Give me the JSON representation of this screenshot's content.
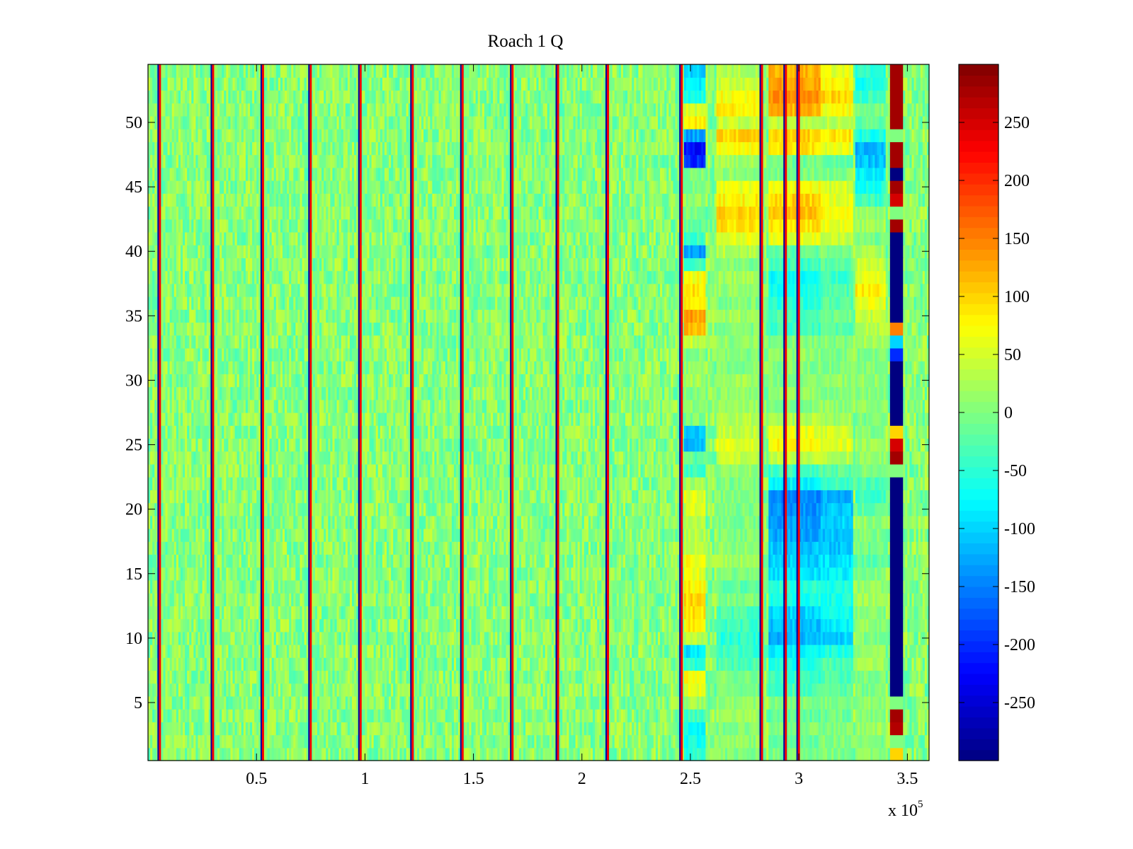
{
  "chart_data": {
    "type": "heatmap",
    "title": "Roach 1 Q",
    "xlabel": "",
    "ylabel": "",
    "x_multiplier": "x 10",
    "x_multiplier_exponent": "5",
    "xlim": [
      0,
      3.6
    ],
    "ylim": [
      0.5,
      54.5
    ],
    "x_ticks": [
      0.5,
      1,
      1.5,
      2,
      2.5,
      3,
      3.5
    ],
    "x_tick_labels": [
      "0.5",
      "1",
      "1.5",
      "2",
      "2.5",
      "3",
      "3.5"
    ],
    "y_ticks": [
      5,
      10,
      15,
      20,
      25,
      30,
      35,
      40,
      45,
      50
    ],
    "y_tick_labels": [
      "5",
      "10",
      "15",
      "20",
      "25",
      "30",
      "35",
      "40",
      "45",
      "50"
    ],
    "rows": 54,
    "colorbar": {
      "colormap": "jet",
      "clim": [
        -300,
        300
      ],
      "ticks": [
        250,
        200,
        150,
        100,
        50,
        0,
        -50,
        -100,
        -150,
        -200,
        -250
      ],
      "tick_labels": [
        "250",
        "200",
        "150",
        "100",
        "50",
        "0",
        "-50",
        "-100",
        "-150",
        "-200",
        "-250"
      ]
    },
    "base_level": 5,
    "vertical_stripes_x": [
      0.055,
      0.3,
      0.53,
      0.75,
      0.98,
      1.22,
      1.45,
      1.68,
      1.89,
      2.12,
      2.46,
      2.83,
      2.94,
      3.0
    ],
    "right_band": {
      "x_range": [
        3.42,
        3.48
      ],
      "row_values": [
        100,
        0,
        270,
        280,
        0,
        -300,
        -300,
        -300,
        -300,
        -300,
        -300,
        -300,
        -300,
        -300,
        -300,
        -300,
        -300,
        -300,
        -300,
        -300,
        -300,
        -300,
        0,
        280,
        250,
        100,
        -300,
        -300,
        -300,
        -300,
        -300,
        -200,
        -100,
        150,
        -300,
        -300,
        -300,
        -300,
        -300,
        -300,
        -300,
        280,
        0,
        250,
        280,
        -300,
        280,
        280,
        0,
        280,
        280,
        280,
        280,
        280
      ]
    },
    "regions": [
      {
        "x_range": [
          2.47,
          2.57
        ],
        "row_values": [
          -50,
          -60,
          -70,
          -40,
          20,
          60,
          70,
          -50,
          -90,
          30,
          80,
          90,
          100,
          80,
          60,
          70,
          40,
          30,
          40,
          50,
          60,
          20,
          -40,
          -20,
          -120,
          -100,
          0,
          10,
          0,
          20,
          10,
          0,
          40,
          120,
          130,
          80,
          90,
          70,
          -40,
          -130,
          -40,
          -20,
          0,
          10,
          0,
          0,
          -200,
          -220,
          -130,
          80,
          50,
          -60,
          -80,
          -100
        ]
      },
      {
        "x_range": [
          2.62,
          2.82
        ],
        "row_values": [
          0,
          10,
          0,
          20,
          10,
          0,
          0,
          -30,
          -40,
          -50,
          -40,
          -30,
          0,
          -20,
          0,
          20,
          10,
          0,
          0,
          0,
          0,
          0,
          10,
          40,
          60,
          40,
          30,
          20,
          10,
          20,
          0,
          0,
          10,
          0,
          20,
          0,
          10,
          20,
          0,
          30,
          60,
          90,
          100,
          80,
          60,
          10,
          20,
          70,
          100,
          40,
          80,
          70,
          40,
          30
        ]
      },
      {
        "x_range": [
          2.86,
          3.1
        ],
        "row_values": [
          0,
          -10,
          0,
          -20,
          0,
          -30,
          -40,
          -60,
          -80,
          -120,
          -110,
          -100,
          -60,
          -50,
          -90,
          -100,
          -110,
          -130,
          -130,
          -140,
          -150,
          -80,
          -40,
          40,
          80,
          60,
          30,
          0,
          10,
          0,
          0,
          10,
          0,
          -40,
          -30,
          -50,
          -60,
          -70,
          -40,
          -20,
          60,
          90,
          110,
          100,
          70,
          0,
          -10,
          90,
          100,
          40,
          120,
          140,
          130,
          120
        ]
      },
      {
        "x_range": [
          3.1,
          3.25
        ],
        "row_values": [
          0,
          0,
          0,
          -10,
          0,
          -20,
          -30,
          -30,
          -60,
          -100,
          -80,
          -70,
          -60,
          -60,
          -80,
          -90,
          -110,
          -110,
          -100,
          -110,
          -120,
          -40,
          -20,
          30,
          60,
          50,
          20,
          10,
          0,
          10,
          0,
          0,
          0,
          -20,
          -10,
          -20,
          -30,
          -40,
          -20,
          0,
          40,
          60,
          80,
          60,
          50,
          0,
          -20,
          60,
          90,
          30,
          70,
          100,
          80,
          60
        ]
      },
      {
        "x_range": [
          3.26,
          3.4
        ],
        "row_values": [
          10,
          0,
          20,
          0,
          10,
          0,
          0,
          20,
          10,
          0,
          10,
          0,
          20,
          10,
          0,
          -20,
          -10,
          0,
          10,
          -20,
          -40,
          -30,
          0,
          10,
          20,
          0,
          0,
          10,
          0,
          10,
          0,
          0,
          20,
          30,
          40,
          60,
          80,
          60,
          40,
          20,
          -10,
          20,
          10,
          -40,
          -60,
          -80,
          -110,
          -120,
          -60,
          -20,
          0,
          -40,
          -60,
          -50
        ]
      }
    ]
  }
}
